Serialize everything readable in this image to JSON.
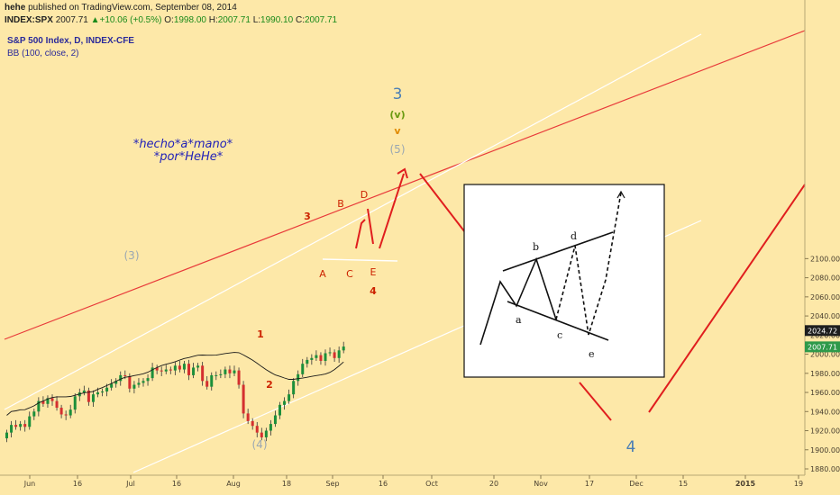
{
  "header": {
    "publisher": "hehe",
    "published_text": "published on TradingView.com, September 08, 2014",
    "symbol": "INDEX:SPX",
    "last": "2007.71",
    "change": "▲+10.06 (+0.5%)",
    "o_label": "O:",
    "o_value": "1998.00",
    "h_label": "H:",
    "h_value": "2007.71",
    "l_label": "L:",
    "l_value": "1990.10",
    "c_label": "C:",
    "c_value": "2007.71"
  },
  "legend": {
    "series_title": "S&P 500 Index, D, INDEX-CFE",
    "indicator": "BB (100, close, 2)"
  },
  "colors": {
    "background": "#fde8a8",
    "candle_up": "#1b8f3a",
    "candle_down": "#d42f2f",
    "channel_red": "#e83a3a",
    "channel_white": "#ffffff",
    "projection": "#e01e1e",
    "wave_red": "#cc2200",
    "wave_gray": "#9aa7b2",
    "wave_blue": "#4a7eb5",
    "wave_green": "#6a9a10",
    "wave_orange": "#e08a00",
    "signature": "#2222b8",
    "price_tag_dark": "#1e1e1e",
    "price_tag_green": "#2e9a4a"
  },
  "chart_data": {
    "type": "candlestick",
    "symbol": "INDEX:SPX",
    "timeframe": "D",
    "x_tick_labels": [
      "Jun",
      "16",
      "Jul",
      "16",
      "Aug",
      "18",
      "Sep",
      "16",
      "Oct",
      "20",
      "Nov",
      "17",
      "Dec",
      "15",
      "2015",
      "19"
    ],
    "y_ticks": [
      1880.0,
      1900.0,
      1920.0,
      1940.0,
      1960.0,
      1980.0,
      2000.0,
      2020.0,
      2040.0,
      2060.0,
      2080.0,
      2100.0
    ],
    "ylim": [
      1876,
      2110
    ],
    "price_tags": [
      {
        "value": 2024.72,
        "label": "2024.72",
        "style": "dark"
      },
      {
        "value": 2007.71,
        "label": "2007.71",
        "style": "green"
      }
    ],
    "candles_start": "2014-05-29",
    "candles_close": [
      1918,
      1926,
      1924,
      1927,
      1924,
      1935,
      1940,
      1951,
      1948,
      1954,
      1951,
      1944,
      1937,
      1936,
      1942,
      1956,
      1960,
      1962,
      1950,
      1958,
      1960,
      1961,
      1965,
      1969,
      1972,
      1978,
      1977,
      1964,
      1968,
      1970,
      1972,
      1975,
      1986,
      1983,
      1982,
      1984,
      1983,
      1988,
      1984,
      1990,
      1978,
      1986,
      1988,
      1972,
      1966,
      1978,
      1978,
      1979,
      1984,
      1980,
      1983,
      1968,
      1938,
      1930,
      1925,
      1918,
      1913,
      1920,
      1927,
      1936,
      1947,
      1951,
      1958,
      1972,
      1979,
      1990,
      1994,
      1996,
      1999,
      1993,
      2001,
      2002,
      1996,
      2004,
      2008
    ]
  },
  "annotations": {
    "wave_3_big": "3",
    "wave_v_paren": "(v)",
    "wave_v": "v",
    "wave_5_paren": "(5)",
    "wave_3_paren": "(3)",
    "wave_4_paren": "(4)",
    "wave_4_big": "4",
    "wave_1": "1",
    "wave_2": "2",
    "wave_3": "3",
    "wave_A": "A",
    "wave_B": "B",
    "wave_C": "C",
    "wave_D": "D",
    "wave_E": "E",
    "wave_4_small": "4",
    "signature_line1": "*hecho*a*mano*",
    "signature_line2": "*por*HeHe*"
  },
  "inset": {
    "labels": [
      "a",
      "b",
      "c",
      "d",
      "e"
    ]
  }
}
